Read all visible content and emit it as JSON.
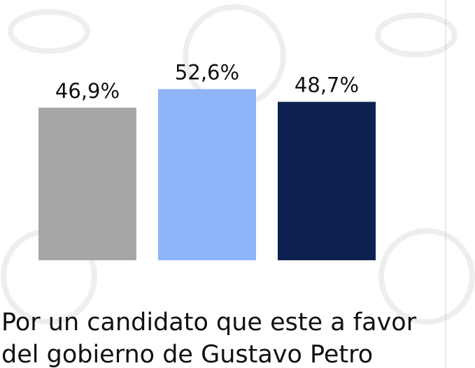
{
  "chart_data": {
    "type": "bar",
    "values": [
      46.9,
      52.6,
      48.7
    ],
    "value_labels": [
      "46,9%",
      "52,6%",
      "48,7%"
    ],
    "colors": [
      "#a6a6a6",
      "#8fb4f7",
      "#0c2150"
    ],
    "ylim": [
      0,
      80
    ],
    "caption_lines": [
      "Por un candidato que este a favor",
      "del gobierno de Gustavo Petro"
    ]
  }
}
